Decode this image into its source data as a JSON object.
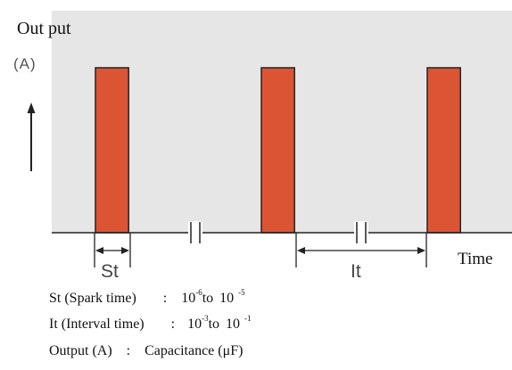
{
  "y_axis": {
    "label": "Out put",
    "unit": "(A)"
  },
  "x_axis": {
    "label": "Time"
  },
  "colors": {
    "pulse": "#db5535",
    "plot_background": "#e6e6e6",
    "line": "#222222"
  },
  "pulses": [
    {
      "start": 0,
      "width": 1
    },
    {
      "start": 5,
      "width": 1
    },
    {
      "start": 10,
      "width": 1
    }
  ],
  "break_marks": 2,
  "dimensions": {
    "spark": "St",
    "interval": "It"
  },
  "legend": {
    "st": {
      "name": "St (Spark time)",
      "sep": ":",
      "from_base": "10",
      "from_exp": "-6",
      "to_word": "to",
      "to_base": "10",
      "to_exp": "-5"
    },
    "it": {
      "name": "It (Interval time)",
      "sep": ":",
      "from_base": "10",
      "from_exp": "-3",
      "to_word": "to",
      "to_base": "10",
      "to_exp": "-1"
    },
    "out": {
      "name": "Output (A)",
      "sep": ":",
      "value": "Capacitance (μF)"
    }
  }
}
